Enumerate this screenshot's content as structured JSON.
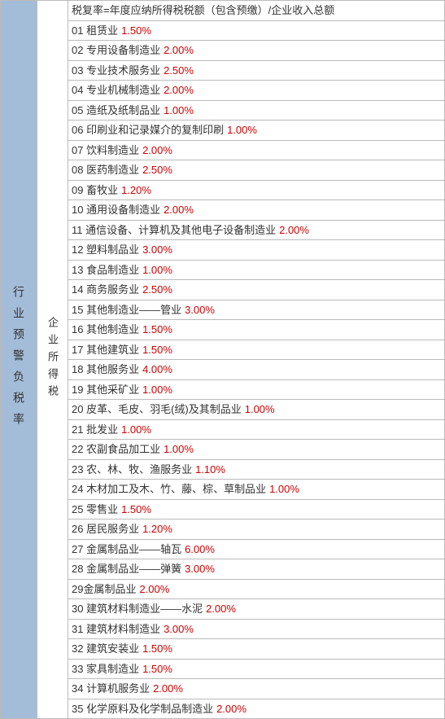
{
  "leftHeader": "行业预警负税率",
  "midHeader": "企业所得税",
  "formulaRow": "税复率=年度应纳所得税税额（包含预缴）/企业收入总额",
  "rows": [
    {
      "num": "01",
      "label": "租赁业",
      "pct": "1.50%"
    },
    {
      "num": "02",
      "label": "专用设备制造业",
      "pct": "2.00%"
    },
    {
      "num": "03",
      "label": "专业技术服务业",
      "pct": "2.50%"
    },
    {
      "num": "04",
      "label": "专业机械制造业",
      "pct": "2.00%"
    },
    {
      "num": "05",
      "label": "造纸及纸制品业",
      "pct": "1.00%"
    },
    {
      "num": "06",
      "label": "印刷业和记录媒介的复制印刷",
      "pct": "1.00%"
    },
    {
      "num": "07",
      "label": "饮料制造业",
      "pct": "2.00%"
    },
    {
      "num": "08",
      "label": "医药制造业",
      "pct": "2.50%"
    },
    {
      "num": "09",
      "label": "畜牧业",
      "pct": "1.20%"
    },
    {
      "num": "10",
      "label": "通用设备制造业",
      "pct": "2.00%"
    },
    {
      "num": "11",
      "label": "通信设备、计算机及其他电子设备制造业",
      "pct": "2.00%"
    },
    {
      "num": "12",
      "label": "塑料制品业",
      "pct": "3.00%"
    },
    {
      "num": "13",
      "label": "食品制造业",
      "pct": "1.00%"
    },
    {
      "num": "14",
      "label": "商务服务业",
      "pct": "2.50%"
    },
    {
      "num": "15",
      "label": "其他制造业——管业",
      "pct": "3.00%"
    },
    {
      "num": "16",
      "label": "其他制造业",
      "pct": "1.50%"
    },
    {
      "num": "17",
      "label": "其他建筑业",
      "pct": "1.50%"
    },
    {
      "num": "18",
      "label": "其他服务业",
      "pct": "4.00%"
    },
    {
      "num": "19",
      "label": "其他采矿业",
      "pct": "1.00%"
    },
    {
      "num": "20",
      "label": "皮革、毛皮、羽毛(绒)及其制品业",
      "pct": "1.00%"
    },
    {
      "num": "21",
      "label": "批发业",
      "pct": "1.00%"
    },
    {
      "num": "22",
      "label": "农副食品加工业",
      "pct": "1.00%"
    },
    {
      "num": "23",
      "label": "农、林、牧、渔服务业",
      "pct": "1.10%"
    },
    {
      "num": "24",
      "label": "木材加工及木、竹、藤、棕、草制品业",
      "pct": "1.00%"
    },
    {
      "num": "25",
      "label": "零售业",
      "pct": "1.50%"
    },
    {
      "num": "26",
      "label": "居民服务业",
      "pct": "1.20%"
    },
    {
      "num": "27",
      "label": "金属制品业——轴瓦",
      "pct": "6.00%"
    },
    {
      "num": "28",
      "label": "金属制品业——弹簧",
      "pct": "3.00%"
    },
    {
      "num": "29",
      "label": "金属制品业",
      "pct": "2.00%",
      "noSpace": true
    },
    {
      "num": "30",
      "label": "建筑材料制造业——水泥",
      "pct": "2.00%"
    },
    {
      "num": "31",
      "label": "建筑材料制造业",
      "pct": "3.00%"
    },
    {
      "num": "32",
      "label": "建筑安装业",
      "pct": "1.50%"
    },
    {
      "num": "33",
      "label": "家具制造业",
      "pct": "1.50%"
    },
    {
      "num": "34",
      "label": "计算机服务业",
      "pct": "2.00%"
    },
    {
      "num": "35",
      "label": "化学原料及化学制品制造业",
      "pct": "2.00%"
    }
  ],
  "colors": {
    "leftBg": "#a3bcd8",
    "border": "#bbbbbb",
    "text": "#333333",
    "pct": "#d00000"
  }
}
